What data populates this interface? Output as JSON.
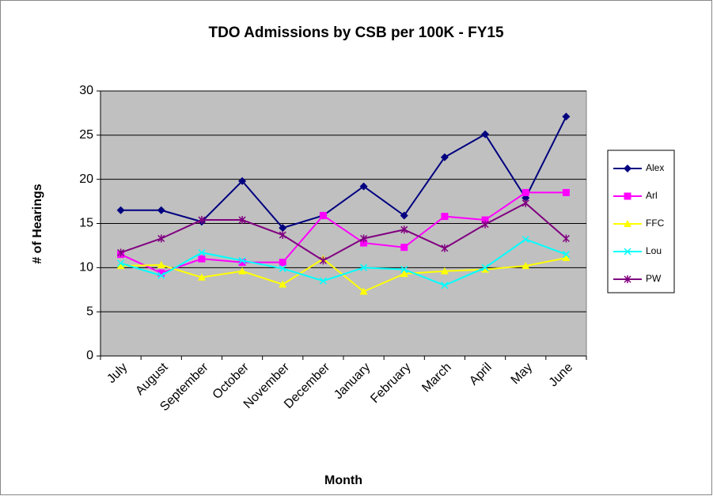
{
  "chart_data": {
    "type": "line",
    "title": "TDO Admissions by CSB per 100K - FY15",
    "x_label": "Month",
    "y_label": "# of Hearings",
    "categories": [
      "July",
      "August",
      "September",
      "October",
      "November",
      "December",
      "January",
      "February",
      "March",
      "April",
      "May",
      "June"
    ],
    "series": [
      {
        "name": "Alex",
        "color": "#000080",
        "marker": "diamond",
        "values": [
          16.5,
          16.5,
          15.2,
          19.8,
          14.5,
          15.9,
          19.2,
          15.9,
          22.5,
          25.1,
          17.9,
          27.1
        ]
      },
      {
        "name": "Arl",
        "color": "#ff00ff",
        "marker": "square",
        "values": [
          11.5,
          9.4,
          11.0,
          10.6,
          10.6,
          15.9,
          12.8,
          12.3,
          15.8,
          15.4,
          18.5,
          18.5
        ]
      },
      {
        "name": "FFC",
        "color": "#ffff00",
        "marker": "triangle",
        "values": [
          10.2,
          10.3,
          8.9,
          9.6,
          8.1,
          11.0,
          7.3,
          9.3,
          9.6,
          9.8,
          10.2,
          11.1
        ]
      },
      {
        "name": "Lou",
        "color": "#00ffff",
        "marker": "x",
        "values": [
          10.5,
          9.1,
          11.7,
          10.8,
          9.9,
          8.5,
          10.0,
          9.8,
          8.0,
          10.0,
          13.2,
          11.5
        ]
      },
      {
        "name": "PW",
        "color": "#800080",
        "marker": "star",
        "values": [
          11.7,
          13.3,
          15.4,
          15.4,
          13.7,
          10.8,
          13.3,
          14.3,
          12.2,
          14.9,
          17.3,
          13.3
        ]
      }
    ],
    "ylim": [
      0,
      30
    ],
    "yticks": [
      0,
      5,
      10,
      15,
      20,
      25,
      30
    ],
    "grid": true,
    "legend": "right",
    "plot_background": "#c0c0c0"
  }
}
